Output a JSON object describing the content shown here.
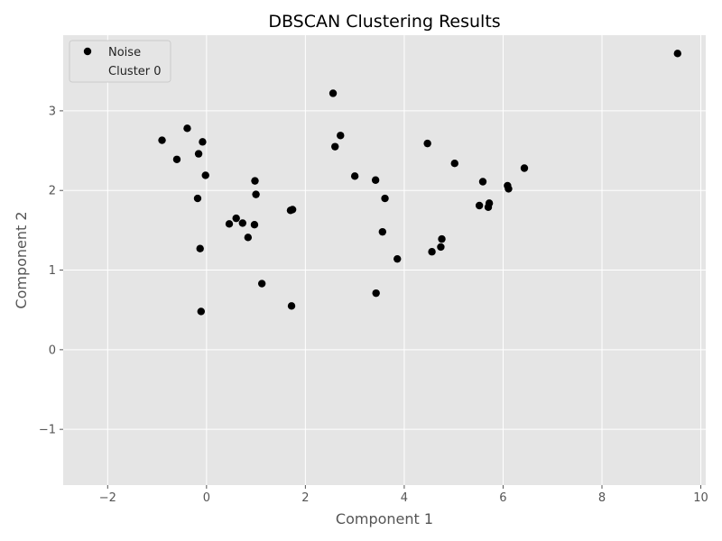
{
  "chart_data": {
    "type": "scatter",
    "title": "DBSCAN Clustering Results",
    "xlabel": "Component 1",
    "ylabel": "Component 2",
    "xlim": [
      -2.9,
      10.1
    ],
    "ylim": [
      -1.7,
      3.95
    ],
    "xticks": [
      -2,
      0,
      2,
      4,
      6,
      8,
      10
    ],
    "yticks": [
      -1,
      0,
      1,
      2,
      3
    ],
    "grid": true,
    "legend_position": "top-left",
    "colors": {
      "plot_background": "#e5e5e5",
      "grid": "#ffffff",
      "noise": "#000000"
    },
    "series": [
      {
        "name": "Noise",
        "color": "#000000",
        "points": [
          [
            -0.9,
            2.63
          ],
          [
            -0.6,
            2.39
          ],
          [
            -0.39,
            2.78
          ],
          [
            -0.16,
            2.46
          ],
          [
            -0.08,
            2.61
          ],
          [
            -0.02,
            2.19
          ],
          [
            -0.18,
            1.9
          ],
          [
            -0.13,
            1.27
          ],
          [
            -0.11,
            0.48
          ],
          [
            0.46,
            1.58
          ],
          [
            0.6,
            1.65
          ],
          [
            0.73,
            1.59
          ],
          [
            0.84,
            1.41
          ],
          [
            0.97,
            1.57
          ],
          [
            0.98,
            2.12
          ],
          [
            1.0,
            1.95
          ],
          [
            1.12,
            0.83
          ],
          [
            1.7,
            1.75
          ],
          [
            1.74,
            1.76
          ],
          [
            1.72,
            0.55
          ],
          [
            2.56,
            3.22
          ],
          [
            2.6,
            2.55
          ],
          [
            2.71,
            2.69
          ],
          [
            3.0,
            2.18
          ],
          [
            3.42,
            2.13
          ],
          [
            3.61,
            1.9
          ],
          [
            3.56,
            1.48
          ],
          [
            3.43,
            0.71
          ],
          [
            3.86,
            1.14
          ],
          [
            4.47,
            2.59
          ],
          [
            4.56,
            1.23
          ],
          [
            4.74,
            1.29
          ],
          [
            4.76,
            1.39
          ],
          [
            5.02,
            2.34
          ],
          [
            5.52,
            1.81
          ],
          [
            5.59,
            2.11
          ],
          [
            5.7,
            1.79
          ],
          [
            5.72,
            1.84
          ],
          [
            6.09,
            2.06
          ],
          [
            6.11,
            2.02
          ],
          [
            6.43,
            2.28
          ],
          [
            9.53,
            3.72
          ]
        ]
      },
      {
        "name": "Cluster 0",
        "color": "#e5e5e5",
        "points": []
      }
    ]
  }
}
